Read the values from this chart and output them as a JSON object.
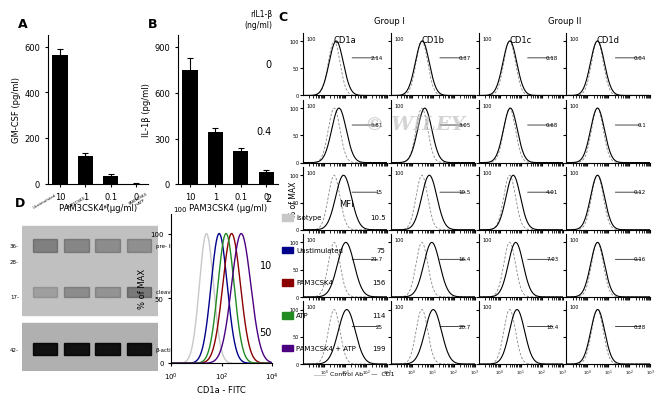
{
  "panel_A": {
    "categories": [
      "10",
      "1",
      "0.1",
      "0"
    ],
    "values": [
      565,
      125,
      35,
      3
    ],
    "errors": [
      25,
      12,
      10,
      2
    ],
    "ylabel": "GM-CSF (pg/ml)",
    "xlabel": "PAM3CSK4 (μg/ml)",
    "yticks": [
      0,
      200,
      400,
      600
    ],
    "ylim": [
      0,
      650
    ]
  },
  "panel_B": {
    "categories": [
      "10",
      "1",
      "0.1",
      "0"
    ],
    "values": [
      750,
      340,
      220,
      80
    ],
    "errors": [
      80,
      30,
      20,
      12
    ],
    "ylabel": "IL-1β (pg/ml)",
    "xlabel": "PAM3CSK4 (μg/ml)",
    "yticks": [
      0,
      300,
      600,
      900
    ],
    "ylim": [
      0,
      980
    ]
  },
  "panel_C": {
    "ril1b_label": "rIL1-β\n(ng/ml)",
    "group1_label": "Group I",
    "group2_label": "Group II",
    "cd_labels": [
      "CD1a",
      "CD1b",
      "CD1c",
      "CD1d"
    ],
    "rows": [
      {
        "ril1b": "0",
        "values": [
          2.14,
          0.37,
          0.18,
          0.04
        ]
      },
      {
        "ril1b": "0.4",
        "values": [
          5.81,
          3.05,
          0.68,
          0.1
        ]
      },
      {
        "ril1b": "2",
        "values": [
          15,
          10.5,
          4.01,
          0.12
        ]
      },
      {
        "ril1b": "10",
        "values": [
          21.7,
          16.4,
          7.93,
          0.16
        ]
      },
      {
        "ril1b": "50",
        "values": [
          25,
          20.7,
          10.4,
          0.28
        ]
      }
    ],
    "xlabel_bottom": "Control Ab",
    "solid_label": "CD1"
  },
  "panel_D": {
    "legend_entries": [
      "Isotype",
      "Unstimulated",
      "PAM3CSK4",
      "ATP",
      "PAM3CSK4 + ATP"
    ],
    "legend_colors": [
      "#c8c8c8",
      "#00008B",
      "#8B0000",
      "#228B22",
      "#4B0082"
    ],
    "mfi_values": [
      "10.5",
      "75",
      "156",
      "114",
      "199"
    ],
    "fc_xlabel": "CD1a - FITC",
    "fc_ylabel": "% of MAX",
    "fc_centers": [
      25,
      80,
      250,
      150,
      600
    ],
    "fc_sigmas": [
      0.28,
      0.32,
      0.35,
      0.32,
      0.38
    ],
    "wb_top_label": "pre- IL-1β",
    "wb_mid_label": "cleaved IL-1β",
    "wb_bot_label": "β-actin",
    "kda_top": "36-",
    "kda_mid1": "28-",
    "kda_mid2": "17-",
    "kda_bot": "42-",
    "col_labels": [
      "Unstimulated",
      "PAM3CSK4",
      "ATP",
      "PAM3CSK4\n+ATP"
    ]
  },
  "wiley_text": "© WILEY",
  "bg_color": "#ffffff"
}
